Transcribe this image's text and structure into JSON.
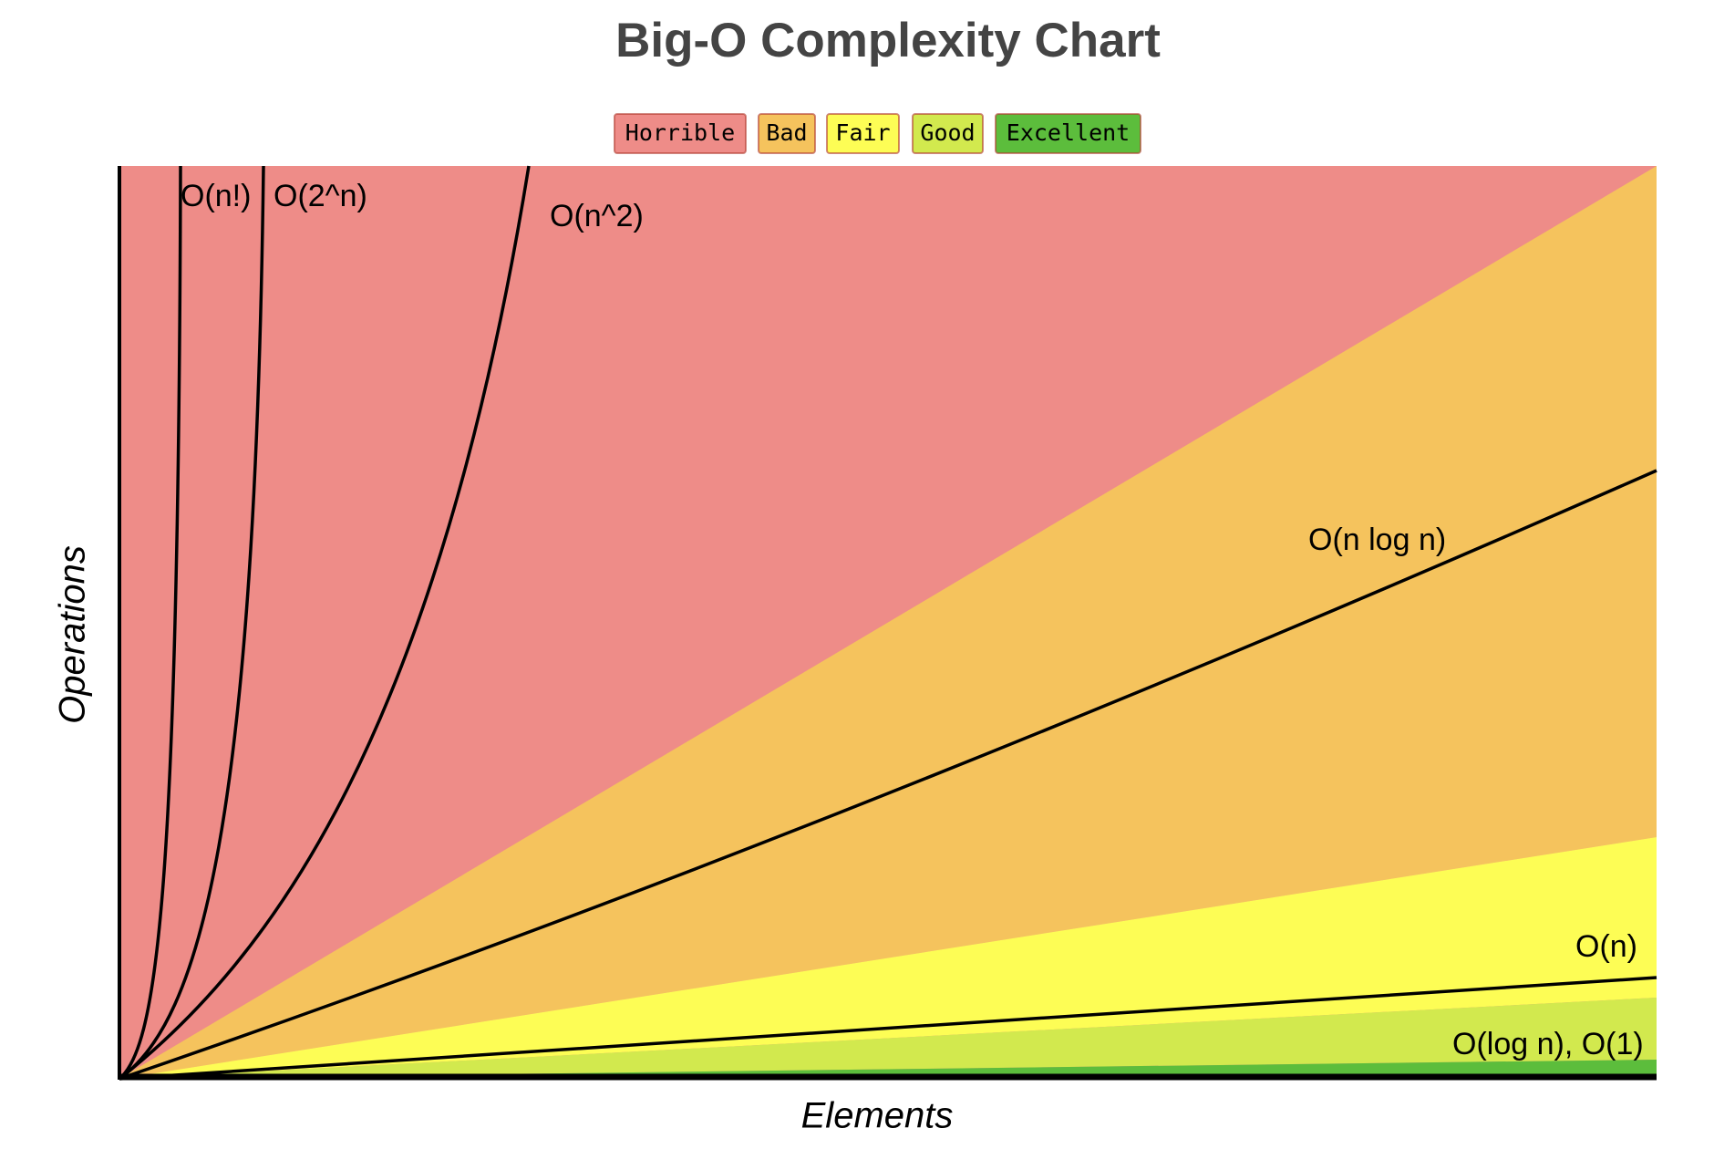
{
  "title": "Big-O Complexity Chart",
  "legend": {
    "items": [
      {
        "label": "Horrible",
        "color": "#ee8c88"
      },
      {
        "label": "Bad",
        "color": "#f5c35d"
      },
      {
        "label": "Fair",
        "color": "#fdfd55"
      },
      {
        "label": "Good",
        "color": "#d2e94e"
      },
      {
        "label": "Excellent",
        "color": "#5cbd3c"
      }
    ]
  },
  "curves": [
    {
      "label": "O(n!)"
    },
    {
      "label": "O(2^n)"
    },
    {
      "label": "O(n^2)"
    },
    {
      "label": "O(n log n)"
    },
    {
      "label": "O(n)"
    },
    {
      "label": "O(log n), O(1)"
    }
  ],
  "axes": {
    "x_label": "Elements",
    "y_label": "Operations"
  }
}
